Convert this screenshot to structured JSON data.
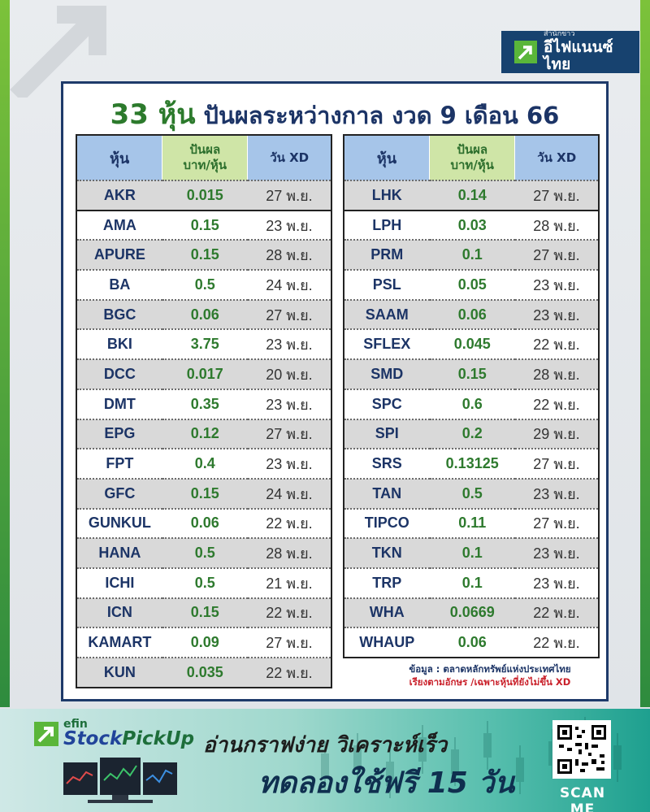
{
  "header": {
    "logo_small": "สำนักข่าว",
    "logo_big": "อีไฟแนนซ์ไทย",
    "title_num": "33 หุ้น",
    "title_rest": " ปันผลระหว่างกาล งวด 9 เดือน 66"
  },
  "table": {
    "headers": {
      "stock": "หุ้น",
      "dividend_line1": "ปันผล",
      "dividend_line2": "บาท/หุ้น",
      "xd": "วัน XD"
    },
    "left_rows": [
      {
        "symbol": "AKR",
        "dividend": "0.015",
        "xd": "27 พ.ย."
      },
      {
        "symbol": "AMA",
        "dividend": "0.15",
        "xd": "23 พ.ย."
      },
      {
        "symbol": "APURE",
        "dividend": "0.15",
        "xd": "28 พ.ย."
      },
      {
        "symbol": "BA",
        "dividend": "0.5",
        "xd": "24 พ.ย."
      },
      {
        "symbol": "BGC",
        "dividend": "0.06",
        "xd": "27 พ.ย."
      },
      {
        "symbol": "BKI",
        "dividend": "3.75",
        "xd": "23 พ.ย."
      },
      {
        "symbol": "DCC",
        "dividend": "0.017",
        "xd": "20 พ.ย."
      },
      {
        "symbol": "DMT",
        "dividend": "0.35",
        "xd": "23 พ.ย."
      },
      {
        "symbol": "EPG",
        "dividend": "0.12",
        "xd": "27 พ.ย."
      },
      {
        "symbol": "FPT",
        "dividend": "0.4",
        "xd": "23 พ.ย."
      },
      {
        "symbol": "GFC",
        "dividend": "0.15",
        "xd": "24 พ.ย."
      },
      {
        "symbol": "GUNKUL",
        "dividend": "0.06",
        "xd": "22 พ.ย."
      },
      {
        "symbol": "HANA",
        "dividend": "0.5",
        "xd": "28 พ.ย."
      },
      {
        "symbol": "ICHI",
        "dividend": "0.5",
        "xd": "21 พ.ย."
      },
      {
        "symbol": "ICN",
        "dividend": "0.15",
        "xd": "22 พ.ย."
      },
      {
        "symbol": "KAMART",
        "dividend": "0.09",
        "xd": "27 พ.ย."
      },
      {
        "symbol": "KUN",
        "dividend": "0.035",
        "xd": "22 พ.ย."
      }
    ],
    "right_rows": [
      {
        "symbol": "LHK",
        "dividend": "0.14",
        "xd": "27 พ.ย."
      },
      {
        "symbol": "LPH",
        "dividend": "0.03",
        "xd": "28 พ.ย."
      },
      {
        "symbol": "PRM",
        "dividend": "0.1",
        "xd": "27 พ.ย."
      },
      {
        "symbol": "PSL",
        "dividend": "0.05",
        "xd": "23 พ.ย."
      },
      {
        "symbol": "SAAM",
        "dividend": "0.06",
        "xd": "23 พ.ย."
      },
      {
        "symbol": "SFLEX",
        "dividend": "0.045",
        "xd": "22 พ.ย."
      },
      {
        "symbol": "SMD",
        "dividend": "0.15",
        "xd": "28 พ.ย."
      },
      {
        "symbol": "SPC",
        "dividend": "0.6",
        "xd": "22 พ.ย."
      },
      {
        "symbol": "SPI",
        "dividend": "0.2",
        "xd": "29 พ.ย."
      },
      {
        "symbol": "SRS",
        "dividend": "0.13125",
        "xd": "27 พ.ย."
      },
      {
        "symbol": "TAN",
        "dividend": "0.5",
        "xd": "23 พ.ย."
      },
      {
        "symbol": "TIPCO",
        "dividend": "0.11",
        "xd": "27 พ.ย."
      },
      {
        "symbol": "TKN",
        "dividend": "0.1",
        "xd": "23 พ.ย."
      },
      {
        "symbol": "TRP",
        "dividend": "0.1",
        "xd": "23 พ.ย."
      },
      {
        "symbol": "WHA",
        "dividend": "0.0669",
        "xd": "22 พ.ย."
      },
      {
        "symbol": "WHAUP",
        "dividend": "0.06",
        "xd": "22 พ.ย."
      }
    ]
  },
  "footer": {
    "source": "ข้อมูล : ตลาดหลักทรัพย์แห่งประเทศไทย",
    "note": "เรียงตามอักษร /เฉพาะหุ้นที่ยังไม่ขึ้น XD"
  },
  "banner": {
    "brand_small": "efin",
    "brand_big_a": "Stock",
    "brand_big_b": "PickUp",
    "line1": "อ่านกราฟง่าย วิเคราะห์เร็ว",
    "line2": "ทดลองใช้ฟรี 15 วัน",
    "scan_label": "SCAN ME"
  },
  "colors": {
    "navy": "#1c3466",
    "green_value": "#2e7a2e",
    "header_blue": "#a6c5e9",
    "header_green": "#cfe5a7",
    "note_red": "#c9202a"
  }
}
